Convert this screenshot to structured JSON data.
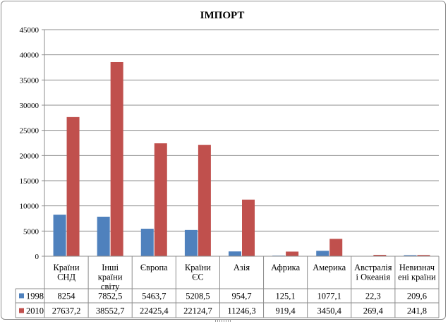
{
  "chart_data": {
    "type": "bar",
    "title": "ІМПОРТ",
    "ylim": [
      0,
      45000
    ],
    "yticks": [
      0,
      5000,
      10000,
      15000,
      20000,
      25000,
      30000,
      35000,
      40000,
      45000
    ],
    "grid": true,
    "legend": "data-table",
    "categories": [
      [
        "Країни",
        "СНД"
      ],
      [
        "Інші",
        "країни",
        "світу"
      ],
      [
        "Європа"
      ],
      [
        "Країни",
        "ЄС"
      ],
      [
        "Азія"
      ],
      [
        "Африка"
      ],
      [
        "Америка"
      ],
      [
        "Австралія",
        "і Океанія"
      ],
      [
        "Невизнач",
        "ені країни"
      ]
    ],
    "series": [
      {
        "name": "1998",
        "color": "#4f81bd",
        "values": [
          8254,
          7852.5,
          5463.7,
          5208.5,
          954.7,
          125.1,
          1077.1,
          22.3,
          209.6
        ],
        "labels": [
          "8254",
          "7852,5",
          "5463,7",
          "5208,5",
          "954,7",
          "125,1",
          "1077,1",
          "22,3",
          "209,6"
        ]
      },
      {
        "name": "2010",
        "color": "#c0504d",
        "values": [
          27637.2,
          38552.7,
          22425.4,
          22124.7,
          11246.3,
          919.4,
          3450.4,
          269.4,
          241.8
        ],
        "labels": [
          "27637,2",
          "38552,7",
          "22425,4",
          "22124,7",
          "11246,3",
          "919,4",
          "3450,4",
          "269,4",
          "241,8"
        ]
      }
    ]
  }
}
